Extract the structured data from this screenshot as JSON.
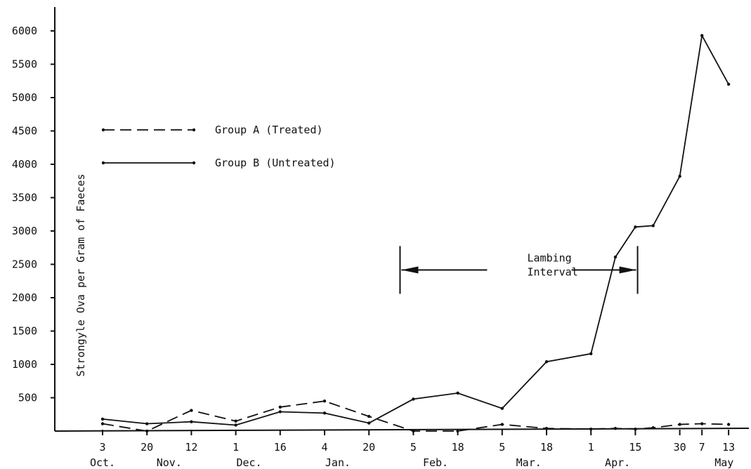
{
  "chart_data": {
    "type": "line",
    "title": "",
    "ylabel": "Strongyle Ova per Gram of Faeces",
    "xlabel": "",
    "ylim": [
      0,
      6000
    ],
    "yticks": [
      500,
      1000,
      1500,
      2000,
      2500,
      3000,
      3500,
      4000,
      4500,
      5000,
      5500,
      6000
    ],
    "xticks": [
      {
        "pos": 1,
        "label": "3"
      },
      {
        "pos": 2,
        "label": "20"
      },
      {
        "pos": 3,
        "label": "12"
      },
      {
        "pos": 4,
        "label": "1"
      },
      {
        "pos": 5,
        "label": "16"
      },
      {
        "pos": 6,
        "label": "4"
      },
      {
        "pos": 7,
        "label": "20"
      },
      {
        "pos": 8,
        "label": "5"
      },
      {
        "pos": 9,
        "label": "18"
      },
      {
        "pos": 10,
        "label": "5"
      },
      {
        "pos": 11,
        "label": "18"
      },
      {
        "pos": 12,
        "label": "1"
      },
      {
        "pos": 13,
        "label": "15"
      },
      {
        "pos": 14,
        "label": "30"
      },
      {
        "pos": 14.5,
        "label": "7"
      },
      {
        "pos": 15.1,
        "label": "13"
      }
    ],
    "months": [
      {
        "pos": 1,
        "label": "Oct."
      },
      {
        "pos": 2.5,
        "label": "Nov."
      },
      {
        "pos": 4.3,
        "label": "Dec."
      },
      {
        "pos": 6.3,
        "label": "Jan."
      },
      {
        "pos": 8.5,
        "label": "Feb."
      },
      {
        "pos": 10.6,
        "label": "Mar."
      },
      {
        "pos": 12.6,
        "label": "Apr."
      },
      {
        "pos": 15,
        "label": "May"
      }
    ],
    "series": [
      {
        "name": "Group A (Treated)",
        "style": "dashed",
        "x": [
          1,
          2,
          3,
          4,
          5,
          6,
          7,
          8,
          9,
          10,
          11,
          12,
          12.55,
          13,
          13.4,
          14,
          14.5,
          15.1
        ],
        "y": [
          110,
          0,
          310,
          150,
          360,
          450,
          220,
          0,
          0,
          100,
          40,
          30,
          40,
          30,
          50,
          100,
          110,
          100
        ]
      },
      {
        "name": "Group B (Untreated)",
        "style": "solid",
        "x": [
          1,
          2,
          3,
          4,
          5,
          6,
          7,
          8,
          9,
          10,
          11,
          12,
          12.55,
          13,
          13.4,
          14,
          14.5,
          15.1
        ],
        "y": [
          180,
          110,
          140,
          90,
          290,
          270,
          120,
          480,
          570,
          340,
          1040,
          1160,
          2610,
          3060,
          3080,
          3820,
          5930,
          5200
        ]
      }
    ],
    "annotation": {
      "lines": [
        "Lambing",
        "Interval"
      ],
      "x_start": 7.7,
      "x_end": 13.05,
      "y": 2500
    },
    "legend_placement": "top-left",
    "grid": false
  }
}
